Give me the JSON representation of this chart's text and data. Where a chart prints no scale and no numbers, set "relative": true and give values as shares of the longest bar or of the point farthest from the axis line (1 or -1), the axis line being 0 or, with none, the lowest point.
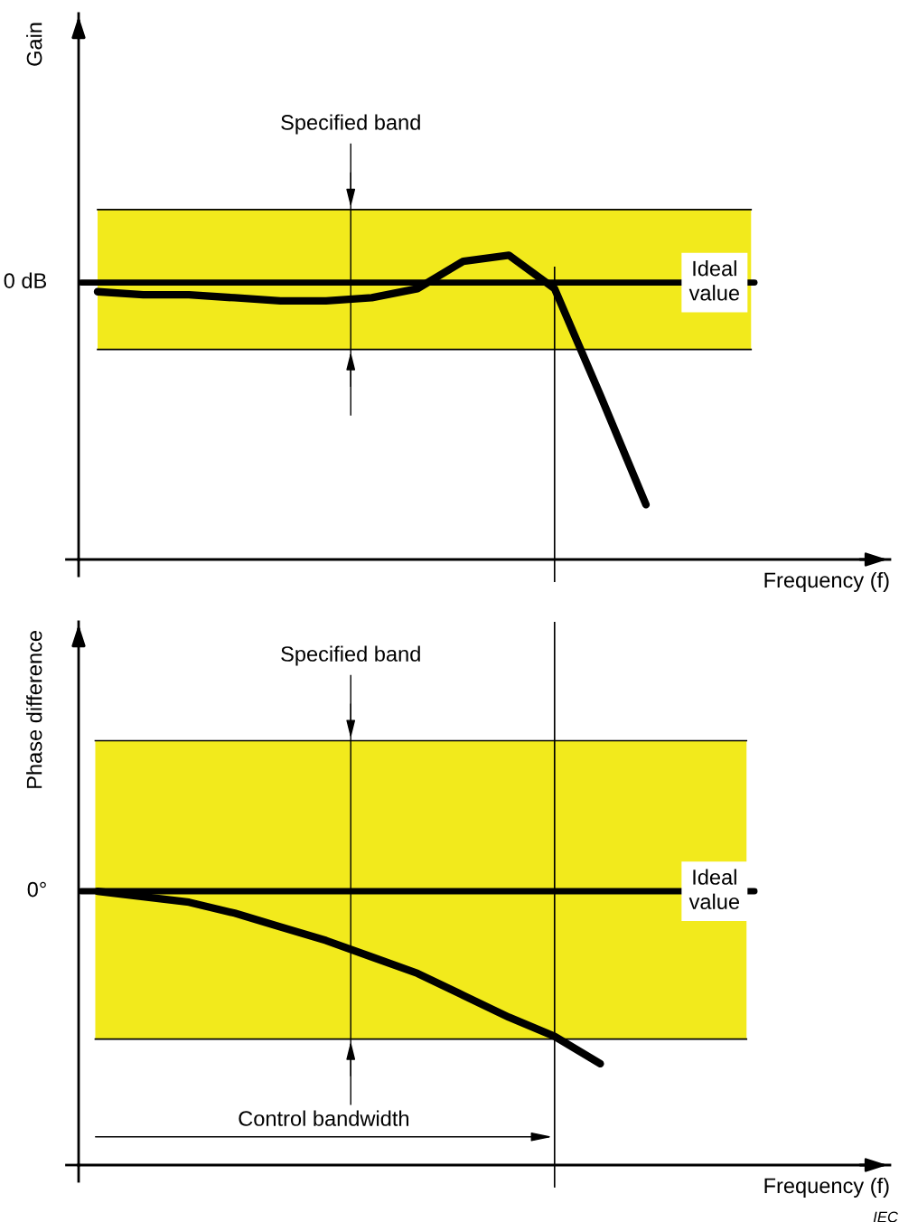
{
  "chart_data": [
    {
      "type": "line",
      "ylabel": "Gain",
      "xlabel": "Frequency (f)",
      "relative": true,
      "marker": "none",
      "line_style": "solid",
      "categories": [
        null,
        null,
        null,
        null,
        null,
        null,
        null,
        null,
        null,
        null,
        null,
        null,
        null
      ],
      "series": [
        {
          "color": "#000000",
          "values": [
            0.88,
            0.87,
            0.87,
            0.86,
            0.85,
            0.85,
            0.86,
            0.89,
            0.98,
            1.0,
            0.89,
            0.54,
            0.18
          ]
        }
      ],
      "bands": [
        {
          "axis": "y",
          "from": 0.69,
          "to": 1.15,
          "color": "#f2ea1c"
        }
      ],
      "ref_lines": [
        {
          "axis": "y",
          "value": 0.91,
          "label": "Ideal value",
          "color": "#000000"
        }
      ],
      "annotations": [
        "0 dB",
        "Specified band"
      ]
    },
    {
      "type": "line",
      "ylabel": "Phase difference",
      "xlabel": "Frequency (f)",
      "relative": true,
      "marker": "none",
      "line_style": "solid",
      "categories": [
        null,
        null,
        null,
        null,
        null,
        null,
        null,
        null,
        null,
        null,
        null,
        null,
        null
      ],
      "series": [
        {
          "color": "#000000",
          "values": [
            1.0,
            0.98,
            0.96,
            0.92,
            0.87,
            0.82,
            0.76,
            0.7,
            0.62,
            0.54,
            0.47,
            0.37,
            null
          ]
        }
      ],
      "bands": [
        {
          "axis": "y",
          "from": 0.46,
          "to": 1.55,
          "color": "#f2ea1c"
        }
      ],
      "ref_lines": [
        {
          "axis": "y",
          "value": 1.0,
          "label": "Ideal value",
          "color": "#000000"
        }
      ],
      "annotations": [
        "0°",
        "Specified band",
        "Control bandwidth",
        "IEC"
      ]
    }
  ]
}
